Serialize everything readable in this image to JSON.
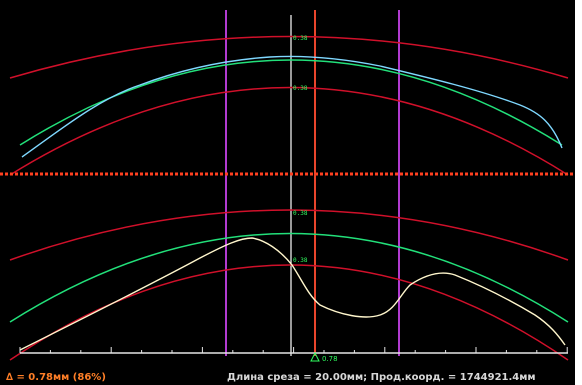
{
  "plot": {
    "labels": {
      "top_outer": "0.38",
      "top_inner": "0.38",
      "bottom_outer": "0.38",
      "bottom_inner": "0.38"
    },
    "marker_value": "0.78",
    "colors": {
      "background": "#000000",
      "tolerance_curve": "#d0102a",
      "reference_curve": "#22e07a",
      "measured_top": "#7fd8ff",
      "measured_bottom": "#fff6cc",
      "limit_line": "#b23bd0",
      "cursor_line": "#e8452c",
      "center_line": "#ffffff",
      "separator": "#ff4020"
    }
  },
  "status": {
    "delta": "∆ =   0.78мм (86%)",
    "cut_info": "Длина среза = 20.00мм;  Прод.коорд. = 1744921.4мм"
  }
}
